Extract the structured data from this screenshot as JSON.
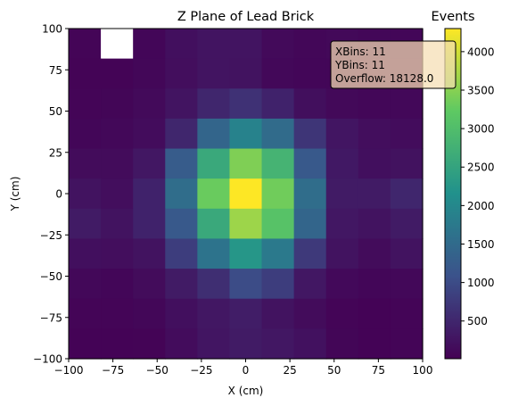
{
  "chart_data": {
    "type": "heatmap",
    "title": "Z Plane of Lead Brick",
    "xlabel": "X (cm)",
    "ylabel": "Y (cm)",
    "xlim": [
      -100,
      100
    ],
    "ylim": [
      -100,
      100
    ],
    "xticks": [
      -100,
      -75,
      -50,
      -25,
      0,
      25,
      50,
      75,
      100
    ],
    "yticks": [
      -100,
      -75,
      -50,
      -25,
      0,
      25,
      50,
      75,
      100
    ],
    "x_bins": 11,
    "y_bins": 11,
    "grid": false,
    "colorbar": {
      "title": "Events",
      "colormap": "viridis",
      "range": [
        10,
        4300
      ],
      "ticks": [
        500,
        1000,
        1500,
        2000,
        2500,
        3000,
        3500,
        4000
      ]
    },
    "stats_box": {
      "lines": [
        "XBins: 11",
        "YBins: 11",
        "Overflow: 18128.0"
      ],
      "location": "top-right"
    },
    "rows_top_to_bottom": [
      [
        60,
        null,
        80,
        200,
        260,
        260,
        130,
        90,
        110,
        90,
        80
      ],
      [
        50,
        50,
        90,
        180,
        260,
        250,
        100,
        80,
        80,
        60,
        50
      ],
      [
        60,
        70,
        130,
        260,
        500,
        650,
        450,
        190,
        110,
        90,
        100
      ],
      [
        80,
        100,
        160,
        500,
        1400,
        1900,
        1500,
        700,
        280,
        180,
        160
      ],
      [
        150,
        150,
        300,
        1250,
        2600,
        3450,
        2800,
        1200,
        320,
        200,
        230
      ],
      [
        250,
        180,
        450,
        1550,
        3300,
        4300,
        3350,
        1550,
        350,
        350,
        500
      ],
      [
        350,
        250,
        450,
        1200,
        2600,
        3650,
        3100,
        1400,
        300,
        250,
        350
      ],
      [
        200,
        180,
        250,
        800,
        1650,
        2250,
        1750,
        750,
        250,
        150,
        250
      ],
      [
        100,
        80,
        150,
        350,
        600,
        1000,
        800,
        300,
        120,
        80,
        100
      ],
      [
        60,
        60,
        90,
        200,
        300,
        380,
        250,
        150,
        60,
        40,
        60
      ],
      [
        40,
        40,
        50,
        160,
        280,
        350,
        300,
        220,
        70,
        40,
        60
      ]
    ]
  }
}
